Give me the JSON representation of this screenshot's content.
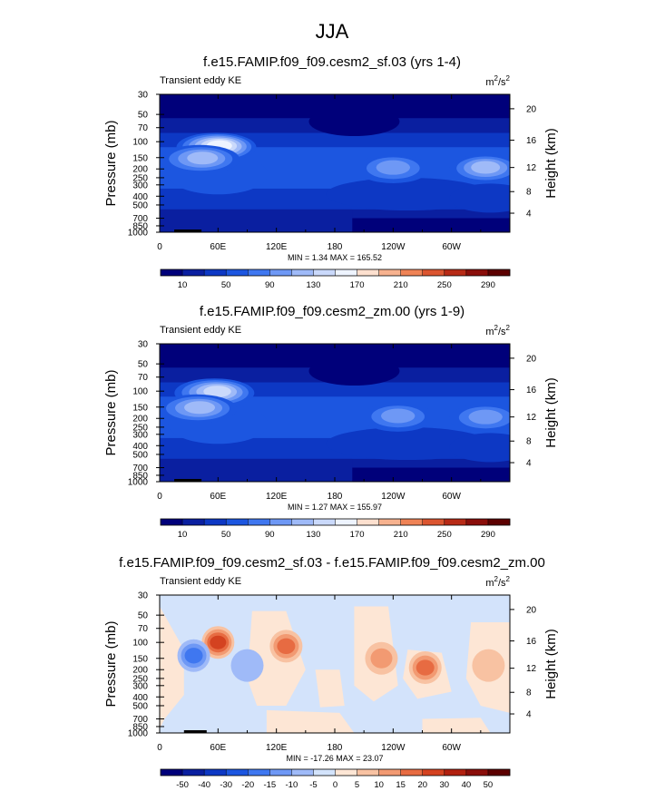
{
  "figure": {
    "title": "JJA"
  },
  "chart_data": [
    {
      "type": "heatmap",
      "title": "f.e15.FAMIP.f09_f09.cesm2_sf.03 (yrs 1-4)",
      "left_label": "Transient eddy KE",
      "units_base": "m",
      "units_exp1": "2",
      "units_mid": "/s",
      "units_exp2": "2",
      "xlabel": "",
      "ylabel": "Pressure (mb)",
      "ylabel_right": "Height (km)",
      "xticks": [
        "0",
        "60E",
        "120E",
        "180",
        "120W",
        "60W"
      ],
      "xtick_lon": [
        0,
        60,
        120,
        180,
        240,
        300
      ],
      "xlim": [
        0,
        360
      ],
      "yticks": [
        "30",
        "50",
        "70",
        "100",
        "150",
        "200",
        "250",
        "300",
        "400",
        "500",
        "700",
        "850",
        "1000"
      ],
      "ytick_p": [
        30,
        50,
        70,
        100,
        150,
        200,
        250,
        300,
        400,
        500,
        700,
        850,
        1000
      ],
      "ylim": [
        30,
        1000
      ],
      "y_scale": "log",
      "right_ticks": [
        "4",
        "8",
        "12",
        "16",
        "20"
      ],
      "right_ticks_km": [
        4,
        8,
        12,
        16,
        20
      ],
      "minmax": "MIN =   1.34  MAX = 165.52",
      "colorbar_labels": [
        "10",
        "50",
        "90",
        "130",
        "170",
        "210",
        "250",
        "290"
      ],
      "colorbar_levels": [
        10,
        30,
        50,
        70,
        90,
        110,
        130,
        150,
        170,
        190,
        210,
        230,
        250,
        270,
        290
      ],
      "min": 1.34,
      "max": 165.52,
      "features": [
        {
          "desc": "subtropical jet core maximum",
          "lon": 62,
          "p": 110,
          "value": 165
        },
        {
          "desc": "secondary maximum",
          "lon": 45,
          "p": 150,
          "value": 130
        },
        {
          "desc": "Pacific storm track maximum",
          "lon": 240,
          "p": 190,
          "value": 110
        },
        {
          "desc": "Atlantic maximum",
          "lon": 335,
          "p": 190,
          "value": 115
        }
      ]
    },
    {
      "type": "heatmap",
      "title": "f.e15.FAMIP.f09_f09.cesm2_zm.00 (yrs 1-9)",
      "left_label": "Transient eddy KE",
      "units_base": "m",
      "units_exp1": "2",
      "units_mid": "/s",
      "units_exp2": "2",
      "xlabel": "",
      "ylabel": "Pressure (mb)",
      "ylabel_right": "Height (km)",
      "xticks": [
        "0",
        "60E",
        "120E",
        "180",
        "120W",
        "60W"
      ],
      "xtick_lon": [
        0,
        60,
        120,
        180,
        240,
        300
      ],
      "xlim": [
        0,
        360
      ],
      "yticks": [
        "30",
        "50",
        "70",
        "100",
        "150",
        "200",
        "250",
        "300",
        "400",
        "500",
        "700",
        "850",
        "1000"
      ],
      "ytick_p": [
        30,
        50,
        70,
        100,
        150,
        200,
        250,
        300,
        400,
        500,
        700,
        850,
        1000
      ],
      "ylim": [
        30,
        1000
      ],
      "y_scale": "log",
      "right_ticks": [
        "4",
        "8",
        "12",
        "16",
        "20"
      ],
      "right_ticks_km": [
        4,
        8,
        12,
        16,
        20
      ],
      "minmax": "MIN =   1.27  MAX = 155.97",
      "colorbar_labels": [
        "10",
        "50",
        "90",
        "130",
        "170",
        "210",
        "250",
        "290"
      ],
      "colorbar_levels": [
        10,
        30,
        50,
        70,
        90,
        110,
        130,
        150,
        170,
        190,
        210,
        230,
        250,
        270,
        290
      ],
      "min": 1.27,
      "max": 155.97,
      "features": [
        {
          "desc": "subtropical jet core maximum",
          "lon": 60,
          "p": 100,
          "value": 150
        },
        {
          "desc": "secondary maximum",
          "lon": 42,
          "p": 150,
          "value": 125
        },
        {
          "desc": "Pacific storm track maximum",
          "lon": 245,
          "p": 185,
          "value": 95
        },
        {
          "desc": "Atlantic maximum",
          "lon": 335,
          "p": 190,
          "value": 100
        }
      ]
    },
    {
      "type": "heatmap",
      "title": "f.e15.FAMIP.f09_f09.cesm2_sf.03 - f.e15.FAMIP.f09_f09.cesm2_zm.00",
      "left_label": "Transient eddy KE",
      "units_base": "m",
      "units_exp1": "2",
      "units_mid": "/s",
      "units_exp2": "2",
      "xlabel": "",
      "ylabel": "Pressure (mb)",
      "ylabel_right": "Height (km)",
      "xticks": [
        "0",
        "60E",
        "120E",
        "180",
        "120W",
        "60W"
      ],
      "xtick_lon": [
        0,
        60,
        120,
        180,
        240,
        300
      ],
      "xlim": [
        0,
        360
      ],
      "yticks": [
        "30",
        "50",
        "70",
        "100",
        "150",
        "200",
        "250",
        "300",
        "400",
        "500",
        "700",
        "850",
        "1000"
      ],
      "ytick_p": [
        30,
        50,
        70,
        100,
        150,
        200,
        250,
        300,
        400,
        500,
        700,
        850,
        1000
      ],
      "ylim": [
        30,
        1000
      ],
      "y_scale": "log",
      "right_ticks": [
        "4",
        "8",
        "12",
        "16",
        "20"
      ],
      "right_ticks_km": [
        4,
        8,
        12,
        16,
        20
      ],
      "minmax": "MIN = -17.26  MAX =  23.07",
      "colorbar_labels": [
        "-50",
        "-40",
        "-30",
        "-20",
        "-15",
        "-10",
        "-5",
        "0",
        "5",
        "10",
        "15",
        "20",
        "30",
        "40",
        "50"
      ],
      "colorbar_levels": [
        -50,
        -40,
        -30,
        -20,
        -15,
        -10,
        -5,
        0,
        5,
        10,
        15,
        20,
        30,
        40,
        50
      ],
      "min": -17.26,
      "max": 23.07,
      "features": [
        {
          "desc": "positive maximum",
          "lon": 60,
          "p": 100,
          "value": 23
        },
        {
          "desc": "negative minimum",
          "lon": 35,
          "p": 140,
          "value": -17
        },
        {
          "desc": "negative",
          "lon": 90,
          "p": 180,
          "value": -8
        },
        {
          "desc": "positive",
          "lon": 130,
          "p": 110,
          "value": 15
        },
        {
          "desc": "positive",
          "lon": 228,
          "p": 150,
          "value": 10
        },
        {
          "desc": "positive",
          "lon": 273,
          "p": 190,
          "value": 15
        },
        {
          "desc": "positive",
          "lon": 338,
          "p": 180,
          "value": 8
        }
      ]
    }
  ],
  "colors": {
    "kemap": [
      "#00007a",
      "#0a1fa0",
      "#0d38c4",
      "#1c56e0",
      "#3f77f0",
      "#6e98f5",
      "#9fbaf8",
      "#cad9fb",
      "#eef4ff",
      "#fde0cf",
      "#f7b28f",
      "#ef8356",
      "#db5530",
      "#b72a16",
      "#8a0e0a",
      "#5c0000"
    ],
    "diffmap": [
      "#00007a",
      "#0a1fa0",
      "#0d38c4",
      "#1c56e0",
      "#3f77f0",
      "#6e98f5",
      "#9fbaf8",
      "#d3e3fb",
      "#fde6d5",
      "#f8c2a2",
      "#f29a72",
      "#e76b42",
      "#d44220",
      "#b1200f",
      "#8a0e0a",
      "#5c0000"
    ]
  }
}
